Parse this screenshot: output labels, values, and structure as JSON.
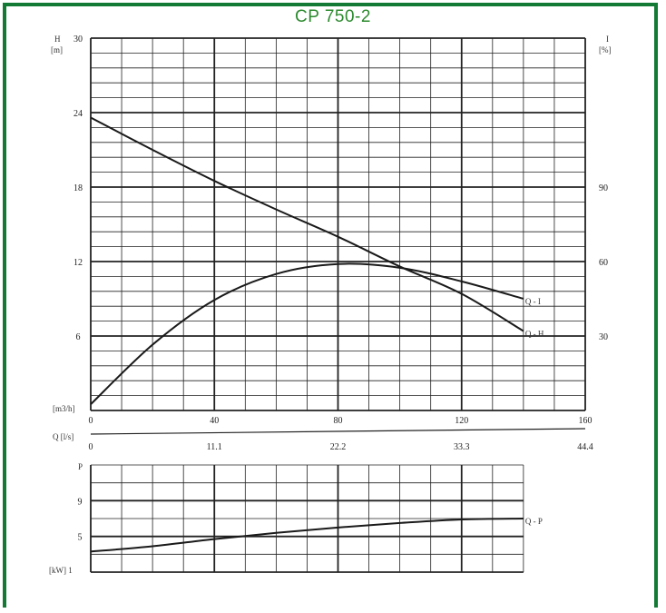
{
  "title": "CP 750-2",
  "colors": {
    "frame": "#137a35",
    "title": "#2c8a2e",
    "grid": "#222222",
    "curve": "#1a1a1a"
  },
  "chart_data": [
    {
      "type": "line",
      "name": "head-efficiency",
      "x_unit_label": "[m3/h]",
      "x_ticks": [
        0,
        40,
        80,
        120,
        160
      ],
      "x_tick_labels": [
        "0",
        "40",
        "80",
        "120",
        "160"
      ],
      "xlim": [
        0,
        160
      ],
      "q_ls_label": "Q [l/s]",
      "q_ls_ticks": [
        0,
        11.1,
        22.2,
        33.3,
        44.4
      ],
      "q_ls_tick_labels": [
        "0",
        "11.1",
        "22.2",
        "33.3",
        "44.4"
      ],
      "y_label": "H",
      "y_unit": "[m]",
      "ylim": [
        0,
        30
      ],
      "y_ticks": [
        6,
        12,
        18,
        24,
        30
      ],
      "y_tick_labels": [
        "6",
        "12",
        "18",
        "24",
        "30"
      ],
      "y2_label": "I",
      "y2_unit": "[%]",
      "y2_ticks": [
        30,
        60,
        90
      ],
      "y2_tick_labels": [
        "30",
        "60",
        "90"
      ],
      "grid": true,
      "series": [
        {
          "name": "Q - H",
          "axis": "left",
          "points": [
            [
              0,
              23.6
            ],
            [
              20,
              21.0
            ],
            [
              40,
              18.5
            ],
            [
              60,
              16.2
            ],
            [
              80,
              14.0
            ],
            [
              100,
              11.6
            ],
            [
              120,
              9.4
            ],
            [
              140,
              6.4
            ]
          ]
        },
        {
          "name": "Q - I",
          "axis": "left",
          "points": [
            [
              0,
              0.5
            ],
            [
              20,
              5.3
            ],
            [
              40,
              8.9
            ],
            [
              60,
              11.0
            ],
            [
              80,
              11.8
            ],
            [
              100,
              11.5
            ],
            [
              120,
              10.4
            ],
            [
              140,
              9.0
            ]
          ]
        }
      ],
      "series_labels": [
        "Q - I",
        "Q - H"
      ]
    },
    {
      "type": "line",
      "name": "power",
      "y_label": "P",
      "y_unit_label": "[kW] 1",
      "xlim": [
        0,
        160
      ],
      "ylim": [
        1,
        13
      ],
      "y_ticks": [
        5,
        9
      ],
      "y_tick_labels": [
        "5",
        "9"
      ],
      "grid": true,
      "series": [
        {
          "name": "Q - P",
          "points": [
            [
              0,
              3.3
            ],
            [
              20,
              3.9
            ],
            [
              40,
              4.7
            ],
            [
              60,
              5.4
            ],
            [
              80,
              6.0
            ],
            [
              100,
              6.5
            ],
            [
              120,
              6.9
            ],
            [
              140,
              7.0
            ]
          ]
        }
      ],
      "series_labels": [
        "Q - P"
      ]
    }
  ]
}
